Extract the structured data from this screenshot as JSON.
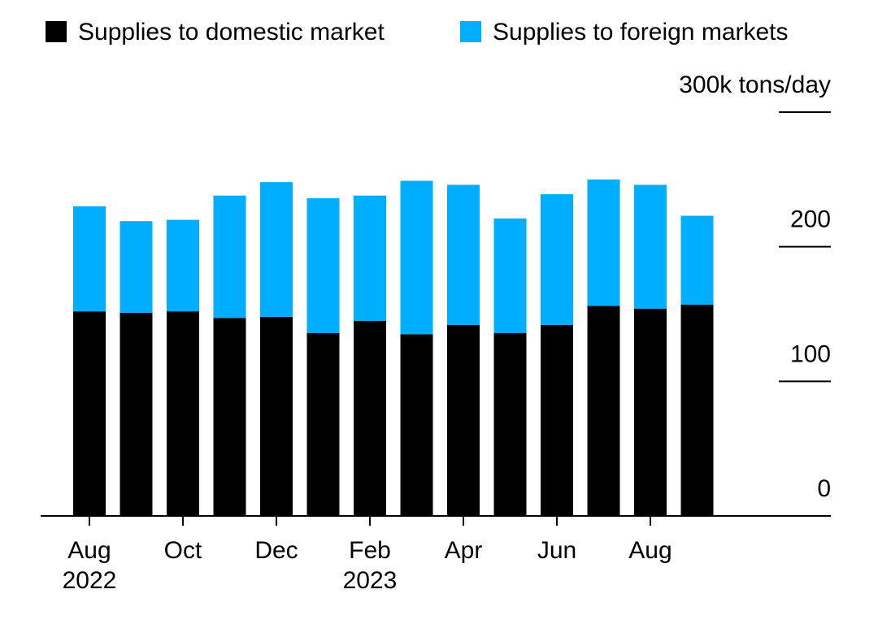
{
  "chart_data": {
    "type": "bar",
    "stacked": true,
    "categories": [
      "Aug 2022",
      "Sep 2022",
      "Oct 2022",
      "Nov 2022",
      "Dec 2022",
      "Jan 2023",
      "Feb 2023",
      "Mar 2023",
      "Apr 2023",
      "May 2023",
      "Jun 2023",
      "Jul 2023",
      "Aug 2023",
      "Sep 2023"
    ],
    "x_tick_labels": [
      {
        "index": 0,
        "line1": "Aug",
        "line2": "2022"
      },
      {
        "index": 2,
        "line1": "Oct",
        "line2": ""
      },
      {
        "index": 4,
        "line1": "Dec",
        "line2": ""
      },
      {
        "index": 6,
        "line1": "Feb",
        "line2": "2023"
      },
      {
        "index": 8,
        "line1": "Apr",
        "line2": ""
      },
      {
        "index": 10,
        "line1": "Jun",
        "line2": ""
      },
      {
        "index": 12,
        "line1": "Aug",
        "line2": ""
      }
    ],
    "series": [
      {
        "name": "Supplies to domestic market",
        "color": "#000000",
        "values": [
          152,
          151,
          152,
          147,
          148,
          136,
          145,
          135,
          142,
          136,
          142,
          156,
          154,
          157
        ]
      },
      {
        "name": "Supplies to foreign markets",
        "color": "#00aeff",
        "values": [
          78,
          68,
          68,
          91,
          100,
          100,
          93,
          114,
          104,
          85,
          97,
          94,
          92,
          66
        ]
      }
    ],
    "ylim": [
      0,
      300
    ],
    "y_ticks": [
      {
        "value": 0,
        "label": "0"
      },
      {
        "value": 100,
        "label": "100"
      },
      {
        "value": 200,
        "label": "200"
      },
      {
        "value": 300,
        "label": "300k tons/day"
      }
    ],
    "legend_position": "top-left",
    "grid": false
  }
}
